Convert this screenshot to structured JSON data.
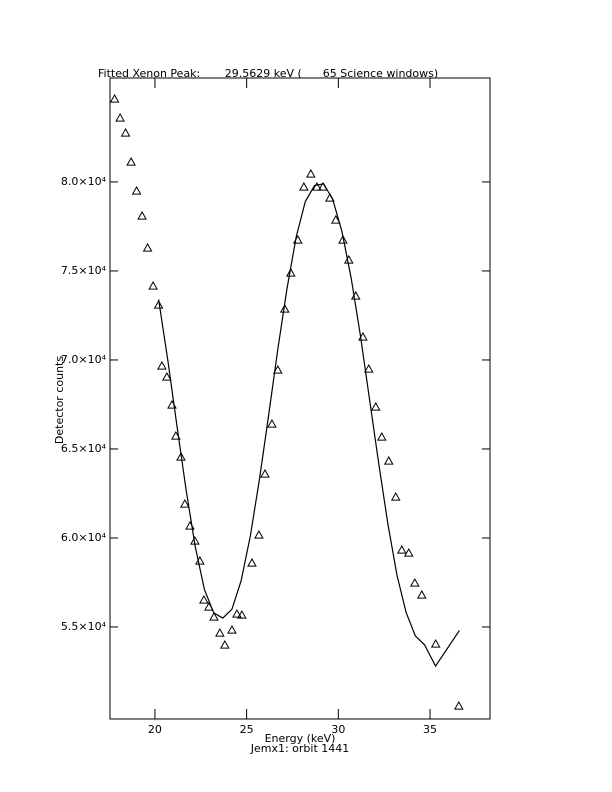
{
  "chart_data": {
    "type": "scatter",
    "title": "Fitted Xenon Peak:       29.5629 keV (      65 Science windows)",
    "xlabel": "Energy (keV)",
    "ylabel": "Detector counts",
    "footnote": "Jemx1: orbit 1441",
    "xlim": [
      17.55,
      38.27
    ],
    "ylim": [
      49830,
      85840
    ],
    "xticks": [
      20,
      25,
      30,
      35
    ],
    "yticks": [
      {
        "value": 55000,
        "label": "5.5×10⁴"
      },
      {
        "value": 60000,
        "label": "6.0×10⁴"
      },
      {
        "value": 65000,
        "label": "6.5×10⁴"
      },
      {
        "value": 70000,
        "label": "7.0×10⁴"
      },
      {
        "value": 75000,
        "label": "7.5×10⁴"
      },
      {
        "value": 80000,
        "label": "8.0×10⁴"
      }
    ],
    "series": [
      {
        "style": "triangle",
        "color": "#000000",
        "x": [
          17.8,
          18.1,
          18.4,
          18.7,
          19.0,
          19.3,
          19.6,
          19.9,
          20.2,
          20.38,
          20.65,
          20.93,
          21.14,
          21.42,
          21.63,
          21.91,
          22.18,
          22.45,
          22.67,
          22.94,
          23.22,
          23.54,
          23.81,
          24.2,
          24.47,
          24.74,
          25.29,
          25.67,
          26.0,
          26.38,
          26.7,
          27.08,
          27.41,
          27.79,
          28.12,
          28.5,
          28.83,
          29.16,
          29.54,
          29.86,
          30.25,
          30.57,
          30.95,
          31.34,
          31.66,
          32.04,
          32.37,
          32.75,
          33.13,
          33.46,
          33.84,
          34.17,
          34.55,
          35.31,
          36.57
        ],
        "values": [
          84663,
          83596,
          82753,
          81124,
          79494,
          78090,
          76292,
          74157,
          73090,
          69663,
          69045,
          67472,
          65730,
          64551,
          61910,
          60674,
          59831,
          58708,
          56517,
          56124,
          55562,
          54663,
          53989,
          54831,
          55730,
          55674,
          58596,
          60169,
          63596,
          66404,
          69438,
          72865,
          74888,
          76742,
          79719,
          80449,
          79719,
          79719,
          79101,
          77865,
          76742,
          75618,
          73596,
          71292,
          69494,
          67360,
          65674,
          64326,
          62303,
          59326,
          59157,
          57472,
          56798,
          54045,
          50562
        ]
      },
      {
        "style": "line",
        "color": "#000000",
        "x": [
          20.2,
          20.7,
          21.2,
          21.7,
          22.2,
          22.7,
          23.2,
          23.7,
          24.2,
          24.7,
          25.2,
          25.7,
          26.2,
          26.7,
          27.2,
          27.7,
          28.2,
          28.7,
          29.2,
          29.7,
          30.2,
          30.7,
          31.2,
          31.7,
          32.2,
          32.7,
          33.2,
          33.7,
          34.2,
          34.7,
          35.3,
          36.6
        ],
        "values": [
          73400,
          70000,
          66300,
          62700,
          59500,
          57100,
          55800,
          55500,
          56000,
          57600,
          60100,
          63300,
          66900,
          70600,
          74000,
          76900,
          78900,
          79800,
          79900,
          79000,
          77200,
          74600,
          71400,
          67800,
          64200,
          60800,
          57900,
          55800,
          54500,
          54000,
          52800,
          54800
        ]
      }
    ]
  }
}
